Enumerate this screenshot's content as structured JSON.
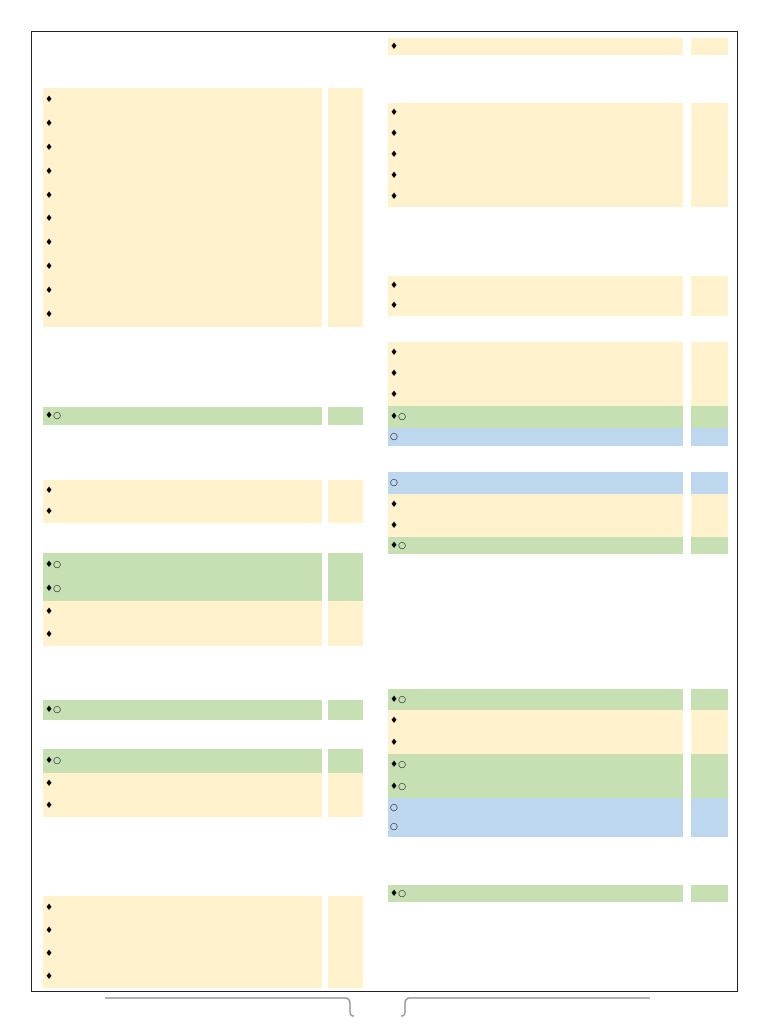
{
  "left": [
    {
      "color": "#fff2cc",
      "rows": [
        "♦",
        "♦",
        "♦",
        "♦",
        "♦",
        "♦",
        "♦",
        "♦",
        "♦",
        "♦"
      ]
    },
    {
      "color": "#c6e0b4",
      "rows": [
        "♦○"
      ]
    },
    {
      "color": "#fff2cc",
      "rows": [
        "♦",
        "♦"
      ]
    },
    {
      "color": "#c6e0b4",
      "rows": [
        "♦○",
        "♦○"
      ]
    },
    {
      "color": "#fff2cc",
      "rows": [
        "♦",
        "♦"
      ]
    },
    {
      "color": "#c6e0b4",
      "rows": [
        "♦○"
      ]
    },
    {
      "color": "#c6e0b4",
      "rows": [
        "♦○"
      ]
    },
    {
      "color": "#fff2cc",
      "rows": [
        "♦",
        "♦"
      ]
    },
    {
      "color": "#fff2cc",
      "rows": [
        "♦",
        "♦",
        "♦",
        "♦"
      ]
    }
  ],
  "right": [
    {
      "color": "#fff2cc",
      "rows": [
        "♦"
      ]
    },
    {
      "color": "#fff2cc",
      "rows": [
        "♦",
        "♦",
        "♦",
        "♦",
        "♦"
      ]
    },
    {
      "color": "#fff2cc",
      "rows": [
        "♦",
        "♦"
      ]
    },
    {
      "color": "#fff2cc",
      "rows": [
        "♦",
        "♦",
        "♦"
      ]
    },
    {
      "color": "#c6e0b4",
      "rows": [
        "♦○"
      ]
    },
    {
      "color": "#bdd7ee",
      "rows": [
        "○"
      ]
    },
    {
      "color": "#bdd7ee",
      "rows": [
        "○"
      ]
    },
    {
      "color": "#fff2cc",
      "rows": [
        "♦",
        "♦"
      ]
    },
    {
      "color": "#c6e0b4",
      "rows": [
        "♦○"
      ]
    },
    {
      "color": "#c6e0b4",
      "rows": [
        "♦○"
      ]
    },
    {
      "color": "#fff2cc",
      "rows": [
        "♦",
        "♦"
      ]
    },
    {
      "color": "#c6e0b4",
      "rows": [
        "♦○",
        "♦○"
      ]
    },
    {
      "color": "#bdd7ee",
      "rows": [
        "○",
        "○"
      ]
    },
    {
      "color": "#c6e0b4",
      "rows": [
        "♦○"
      ]
    }
  ]
}
